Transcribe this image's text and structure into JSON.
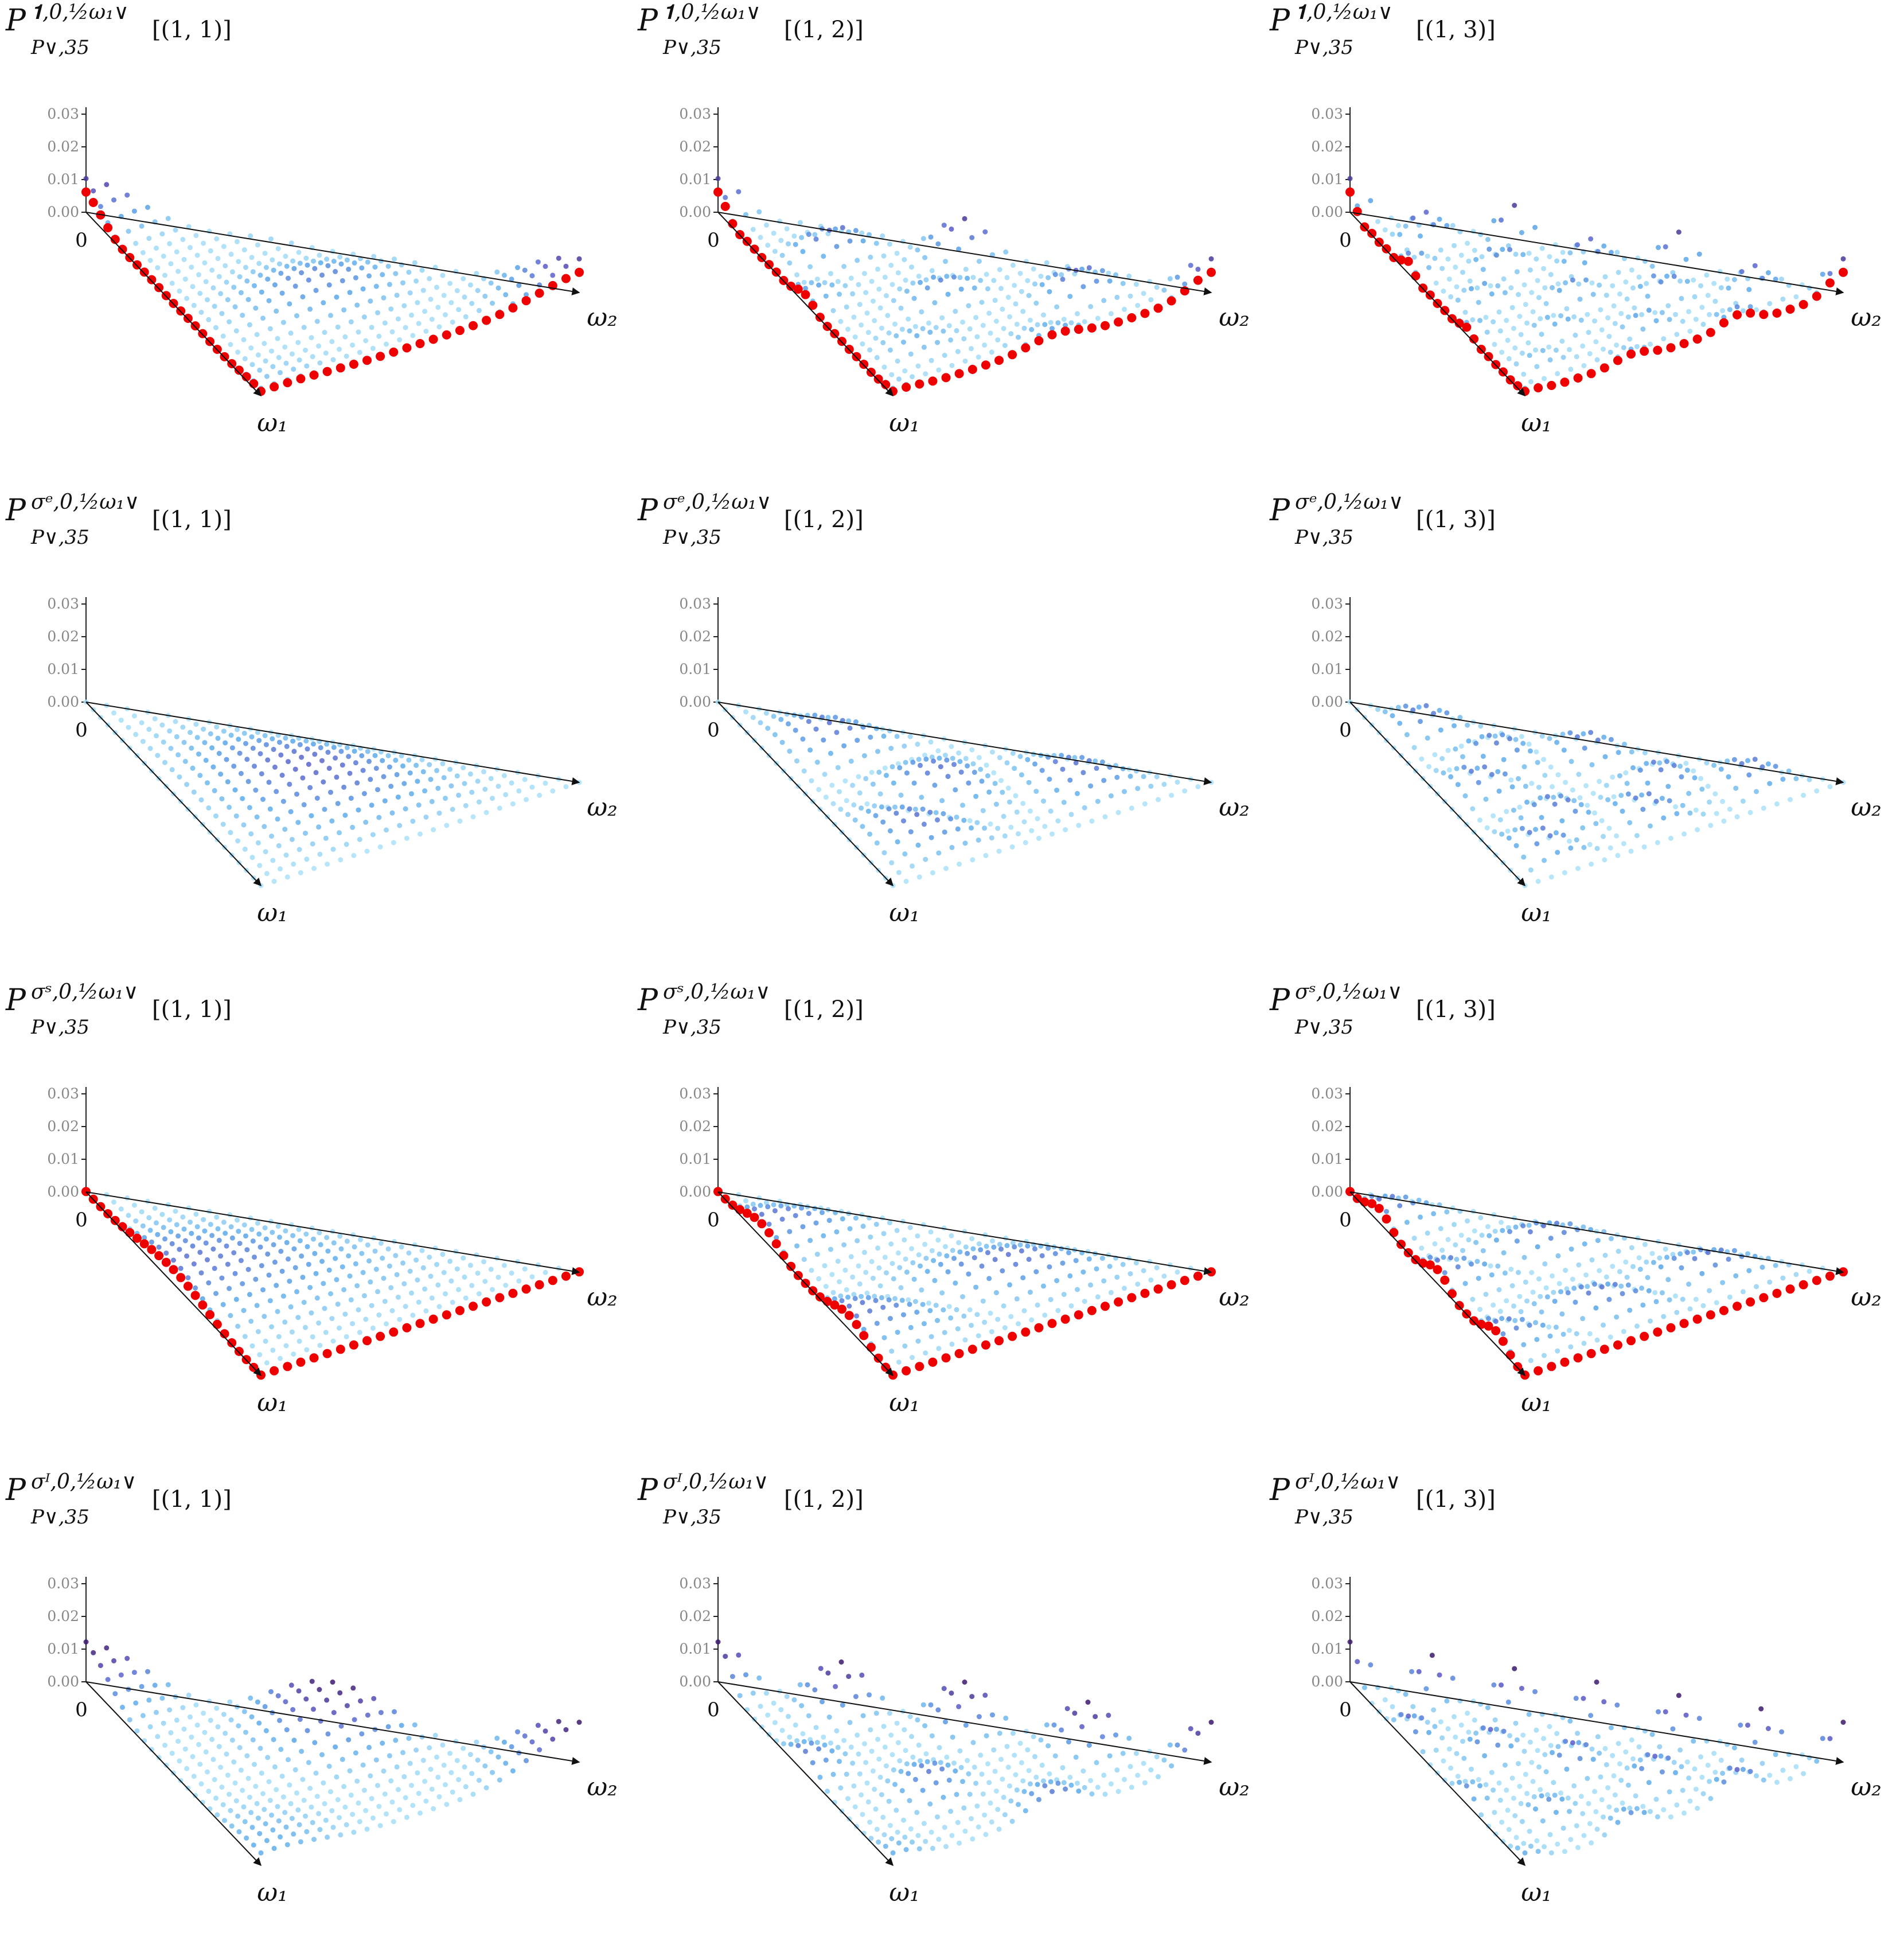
{
  "figure": {
    "description_free": true,
    "row_sup_labels": [
      "𝟏,0,½ω₁∨",
      "σᵉ,0,½ω₁∨",
      "σˢ,0,½ω₁∨",
      "σᴵ,0,½ω₁∨"
    ],
    "sub_label": "P∨,35",
    "col_args": [
      "[(1, 1)]",
      "[(1, 2)]",
      "[(1, 3)]"
    ],
    "colors": {
      "axis": "#000000",
      "tick": "#888888",
      "boundary_points": "#ee0000",
      "low": "#9ed8f5",
      "high": "#4b2a8c"
    }
  },
  "chart_data": [
    {
      "type": "scatter",
      "row": 0,
      "col": 0,
      "title": "P^{𝟏,0,½ω₁∨}_{P∨,35}[(1, 1)]",
      "func": "unit",
      "n": 1,
      "ticks": [
        "0.03",
        "0.02",
        "0.01",
        "0.00"
      ],
      "zlim": [
        0,
        0.03
      ],
      "origin_label": "0",
      "xlabel": "ω₂",
      "ylabel": "ω₁",
      "boundary": true
    },
    {
      "type": "scatter",
      "row": 0,
      "col": 1,
      "title": "P^{𝟏,0,½ω₁∨}_{P∨,35}[(1, 2)]",
      "func": "unit",
      "n": 2,
      "ticks": [
        "0.03",
        "0.02",
        "0.01",
        "0.00"
      ],
      "zlim": [
        0,
        0.03
      ],
      "origin_label": "0",
      "xlabel": "ω₂",
      "ylabel": "ω₁",
      "boundary": true
    },
    {
      "type": "scatter",
      "row": 0,
      "col": 2,
      "title": "P^{𝟏,0,½ω₁∨}_{P∨,35}[(1, 3)]",
      "func": "unit",
      "n": 3,
      "ticks": [
        "0.03",
        "0.02",
        "0.01",
        "0.00"
      ],
      "zlim": [
        0,
        0.03
      ],
      "origin_label": "0",
      "xlabel": "ω₂",
      "ylabel": "ω₁",
      "boundary": true
    },
    {
      "type": "scatter",
      "row": 1,
      "col": 0,
      "title": "P^{σᵉ,0,½ω₁∨}_{P∨,35}[(1, 1)]",
      "func": "e",
      "n": 1,
      "ticks": [
        "0.03",
        "0.02",
        "0.01",
        "0.00"
      ],
      "zlim": [
        0,
        0.03
      ],
      "origin_label": "0",
      "xlabel": "ω₂",
      "ylabel": "ω₁",
      "boundary": false
    },
    {
      "type": "scatter",
      "row": 1,
      "col": 1,
      "title": "P^{σᵉ,0,½ω₁∨}_{P∨,35}[(1, 2)]",
      "func": "e",
      "n": 2,
      "ticks": [
        "0.03",
        "0.02",
        "0.01",
        "0.00"
      ],
      "zlim": [
        0,
        0.03
      ],
      "origin_label": "0",
      "xlabel": "ω₂",
      "ylabel": "ω₁",
      "boundary": false
    },
    {
      "type": "scatter",
      "row": 1,
      "col": 2,
      "title": "P^{σᵉ,0,½ω₁∨}_{P∨,35}[(1, 3)]",
      "func": "e",
      "n": 3,
      "ticks": [
        "0.03",
        "0.02",
        "0.01",
        "0.00"
      ],
      "zlim": [
        0,
        0.03
      ],
      "origin_label": "0",
      "xlabel": "ω₂",
      "ylabel": "ω₁",
      "boundary": false
    },
    {
      "type": "scatter",
      "row": 2,
      "col": 0,
      "title": "P^{σˢ,0,½ω₁∨}_{P∨,35}[(1, 1)]",
      "func": "s",
      "n": 1,
      "ticks": [
        "0.03",
        "0.02",
        "0.01",
        "0.00"
      ],
      "zlim": [
        0,
        0.03
      ],
      "origin_label": "0",
      "xlabel": "ω₂",
      "ylabel": "ω₁",
      "boundary": true
    },
    {
      "type": "scatter",
      "row": 2,
      "col": 1,
      "title": "P^{σˢ,0,½ω₁∨}_{P∨,35}[(1, 2)]",
      "func": "s",
      "n": 2,
      "ticks": [
        "0.03",
        "0.02",
        "0.01",
        "0.00"
      ],
      "zlim": [
        0,
        0.03
      ],
      "origin_label": "0",
      "xlabel": "ω₂",
      "ylabel": "ω₁",
      "boundary": true
    },
    {
      "type": "scatter",
      "row": 2,
      "col": 2,
      "title": "P^{σˢ,0,½ω₁∨}_{P∨,35}[(1, 3)]",
      "func": "s",
      "n": 3,
      "ticks": [
        "0.03",
        "0.02",
        "0.01",
        "0.00"
      ],
      "zlim": [
        0,
        0.03
      ],
      "origin_label": "0",
      "xlabel": "ω₂",
      "ylabel": "ω₁",
      "boundary": true
    },
    {
      "type": "scatter",
      "row": 3,
      "col": 0,
      "title": "P^{σᴵ,0,½ω₁∨}_{P∨,35}[(1, 1)]",
      "func": "l",
      "n": 1,
      "ticks": [
        "0.03",
        "0.02",
        "0.01",
        "0.00"
      ],
      "zlim": [
        0,
        0.03
      ],
      "origin_label": "0",
      "xlabel": "ω₂",
      "ylabel": "ω₁",
      "boundary": false
    },
    {
      "type": "scatter",
      "row": 3,
      "col": 1,
      "title": "P^{σᴵ,0,½ω₁∨}_{P∨,35}[(1, 2)]",
      "func": "l",
      "n": 2,
      "ticks": [
        "0.03",
        "0.02",
        "0.01",
        "0.00"
      ],
      "zlim": [
        0,
        0.03
      ],
      "origin_label": "0",
      "xlabel": "ω₂",
      "ylabel": "ω₁",
      "boundary": false
    },
    {
      "type": "scatter",
      "row": 3,
      "col": 2,
      "title": "P^{σᴵ,0,½ω₁∨}_{P∨,35}[(1, 3)]",
      "func": "l",
      "n": 3,
      "ticks": [
        "0.03",
        "0.02",
        "0.01",
        "0.00"
      ],
      "zlim": [
        0,
        0.03
      ],
      "origin_label": "0",
      "xlabel": "ω₂",
      "ylabel": "ω₁",
      "boundary": false
    }
  ]
}
